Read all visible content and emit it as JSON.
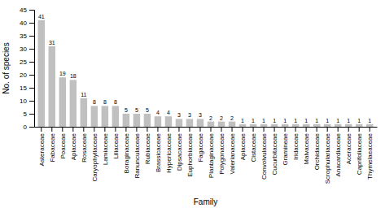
{
  "chart_data": {
    "type": "bar",
    "categories": [
      "Asteraceae",
      "Fabaceae",
      "Poaceae",
      "Apiaceae",
      "Rosaceae",
      "Caryophyllaceae",
      "Lamiaceae",
      "Liliaceae",
      "Boraginaceae",
      "Ranunculaceae",
      "Rubiaceae",
      "Brassicaceae",
      "Hypericaceae",
      "Dipsacaceae",
      "Euphorbiaceae",
      "Fagaceae",
      "Plantaginaceae",
      "Polygonaceae",
      "Valerianaceae",
      "Apiaceae",
      "Cistaceae",
      "Convolvulaceae",
      "Cucurbitaceae",
      "Gramineae",
      "Iridaceae",
      "Malvaceae",
      "Orchidaceae",
      "Scrophulariaceae",
      "Anacardiaceae",
      "Aceraceae",
      "Caprifoliaceae",
      "Thymelaeaceae"
    ],
    "values": [
      41,
      31,
      19,
      18,
      11,
      8,
      8,
      8,
      5,
      5,
      5,
      4,
      4,
      3,
      3,
      3,
      2,
      2,
      2,
      1,
      1,
      1,
      1,
      1,
      1,
      1,
      1,
      1,
      1,
      1,
      1,
      1
    ],
    "color": "#c0c0c0",
    "xlabel": "Family",
    "ylabel": "No. of species",
    "ylim": [
      0,
      45
    ],
    "yticks": [
      0,
      5,
      10,
      15,
      20,
      25,
      30,
      35,
      40,
      45
    ],
    "grid": false,
    "data_labels": true
  }
}
